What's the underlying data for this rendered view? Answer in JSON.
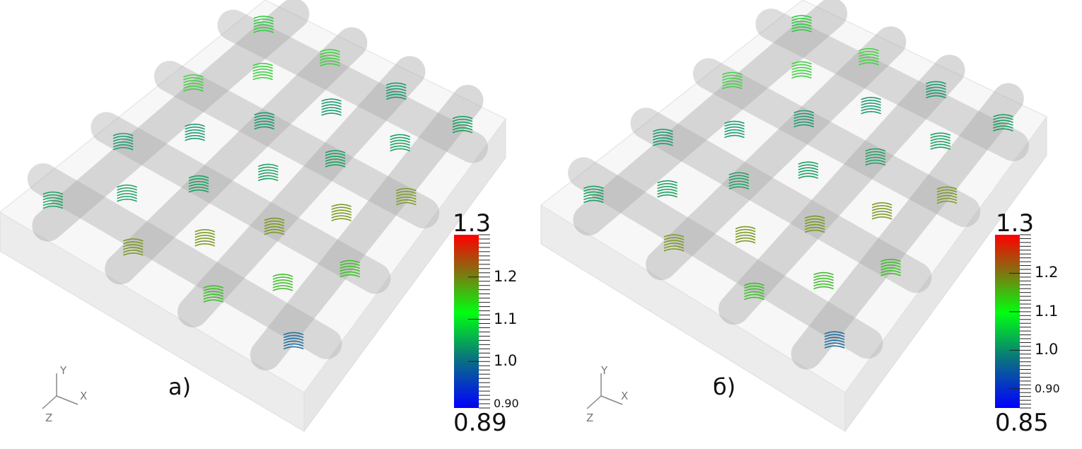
{
  "panels": [
    {
      "label": "а)",
      "colorbar": {
        "max_label": "1.3",
        "min_label": "0.89",
        "min": 0.89,
        "max": 1.3,
        "ticks": [
          {
            "value": 1.2,
            "label": "1.2"
          },
          {
            "value": 1.1,
            "label": "1.1"
          },
          {
            "value": 1.0,
            "label": "1.0"
          },
          {
            "value": 0.9,
            "label": "0.90"
          }
        ],
        "colors": [
          "#0000ff",
          "#0a7a78",
          "#00ff10",
          "#8a6a10",
          "#ff0000"
        ]
      },
      "axes": {
        "x": "X",
        "y": "Y",
        "z": "Z"
      }
    },
    {
      "label": "б)",
      "colorbar": {
        "max_label": "1.3",
        "min_label": "0.85",
        "min": 0.85,
        "max": 1.3,
        "ticks": [
          {
            "value": 1.2,
            "label": "1.2"
          },
          {
            "value": 1.1,
            "label": "1.1"
          },
          {
            "value": 1.0,
            "label": "1.0"
          },
          {
            "value": 0.9,
            "label": "0.90"
          }
        ],
        "colors": [
          "#0000ff",
          "#0a7a78",
          "#00ff10",
          "#8a6a10",
          "#ff0000"
        ]
      },
      "axes": {
        "x": "X",
        "y": "Y",
        "z": "Z"
      }
    }
  ]
}
